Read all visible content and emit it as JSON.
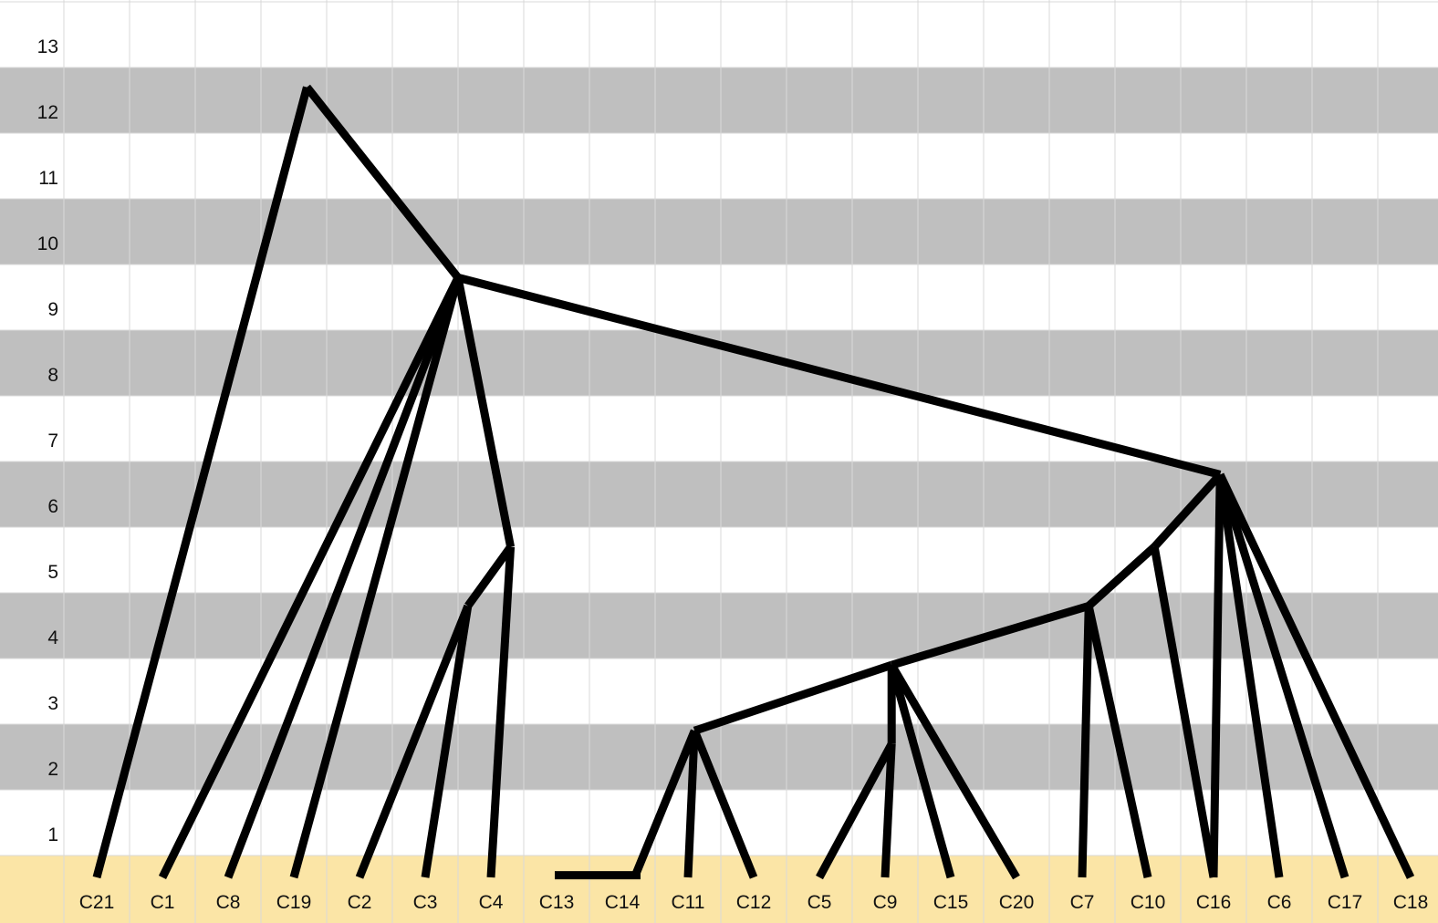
{
  "y_axis": {
    "labels": [
      "13",
      "12",
      "11",
      "10",
      "9",
      "8",
      "7",
      "6",
      "5",
      "4",
      "3",
      "2",
      "1"
    ]
  },
  "leaves": [
    "C21",
    "C1",
    "C8",
    "C19",
    "C2",
    "C3",
    "C4",
    "C13",
    "C14",
    "C11",
    "C12",
    "C5",
    "C9",
    "C15",
    "C20",
    "C7",
    "C10",
    "C16",
    "C6",
    "C17",
    "C18"
  ],
  "colors": {
    "band_gray": "#bfbfbf",
    "leaf_row": "#fbe5a6",
    "grid_line": "#d9d9d9",
    "edge": "#000000"
  },
  "chart_data": {
    "type": "dendrogram",
    "y_range": [
      0,
      13
    ],
    "nodes": [
      {
        "id": "root",
        "leaf_pos": 3.2,
        "level": 12.5
      },
      {
        "id": "n9",
        "leaf_pos": 5.5,
        "level": 9.6
      },
      {
        "id": "n6",
        "leaf_pos": 17.1,
        "level": 6.6
      },
      {
        "id": "n5a",
        "leaf_pos": 6.3,
        "level": 5.5
      },
      {
        "id": "n4a",
        "leaf_pos": 5.65,
        "level": 4.6
      },
      {
        "id": "n5b",
        "leaf_pos": 16.1,
        "level": 5.5
      },
      {
        "id": "n4b",
        "leaf_pos": 15.1,
        "level": 4.6
      },
      {
        "id": "n3",
        "leaf_pos": 12.1,
        "level": 3.7
      },
      {
        "id": "n2a",
        "leaf_pos": 9.1,
        "level": 2.7
      },
      {
        "id": "n2b",
        "leaf_pos": 12.1,
        "level": 2.5
      },
      {
        "id": "nbar",
        "leaf_pos": 8.2,
        "level": 0.5
      }
    ],
    "edges": [
      [
        "root",
        "C21"
      ],
      [
        "root",
        "n9"
      ],
      [
        "n9",
        "C1"
      ],
      [
        "n9",
        "C8"
      ],
      [
        "n9",
        "C19"
      ],
      [
        "n9",
        "n5a"
      ],
      [
        "n9",
        "n6"
      ],
      [
        "n5a",
        "n4a"
      ],
      [
        "n5a",
        "C4"
      ],
      [
        "n4a",
        "C2"
      ],
      [
        "n4a",
        "C3"
      ],
      [
        "n6",
        "n5b"
      ],
      [
        "n6",
        "C6"
      ],
      [
        "n6",
        "C17"
      ],
      [
        "n6",
        "C18"
      ],
      [
        "n6",
        "C16"
      ],
      [
        "n5b",
        "n4b"
      ],
      [
        "n5b",
        "C16"
      ],
      [
        "n4b",
        "n3"
      ],
      [
        "n4b",
        "C7"
      ],
      [
        "n4b",
        "C10"
      ],
      [
        "n3",
        "n2a"
      ],
      [
        "n3",
        "n2b"
      ],
      [
        "n3",
        "C15"
      ],
      [
        "n3",
        "C20"
      ],
      [
        "n2a",
        "nbar"
      ],
      [
        "n2a",
        "C11"
      ],
      [
        "n2a",
        "C12"
      ],
      [
        "n2b",
        "C5"
      ],
      [
        "n2b",
        "C9"
      ]
    ],
    "bar": {
      "from": "C13",
      "to": "C14",
      "level": 0.5
    }
  }
}
